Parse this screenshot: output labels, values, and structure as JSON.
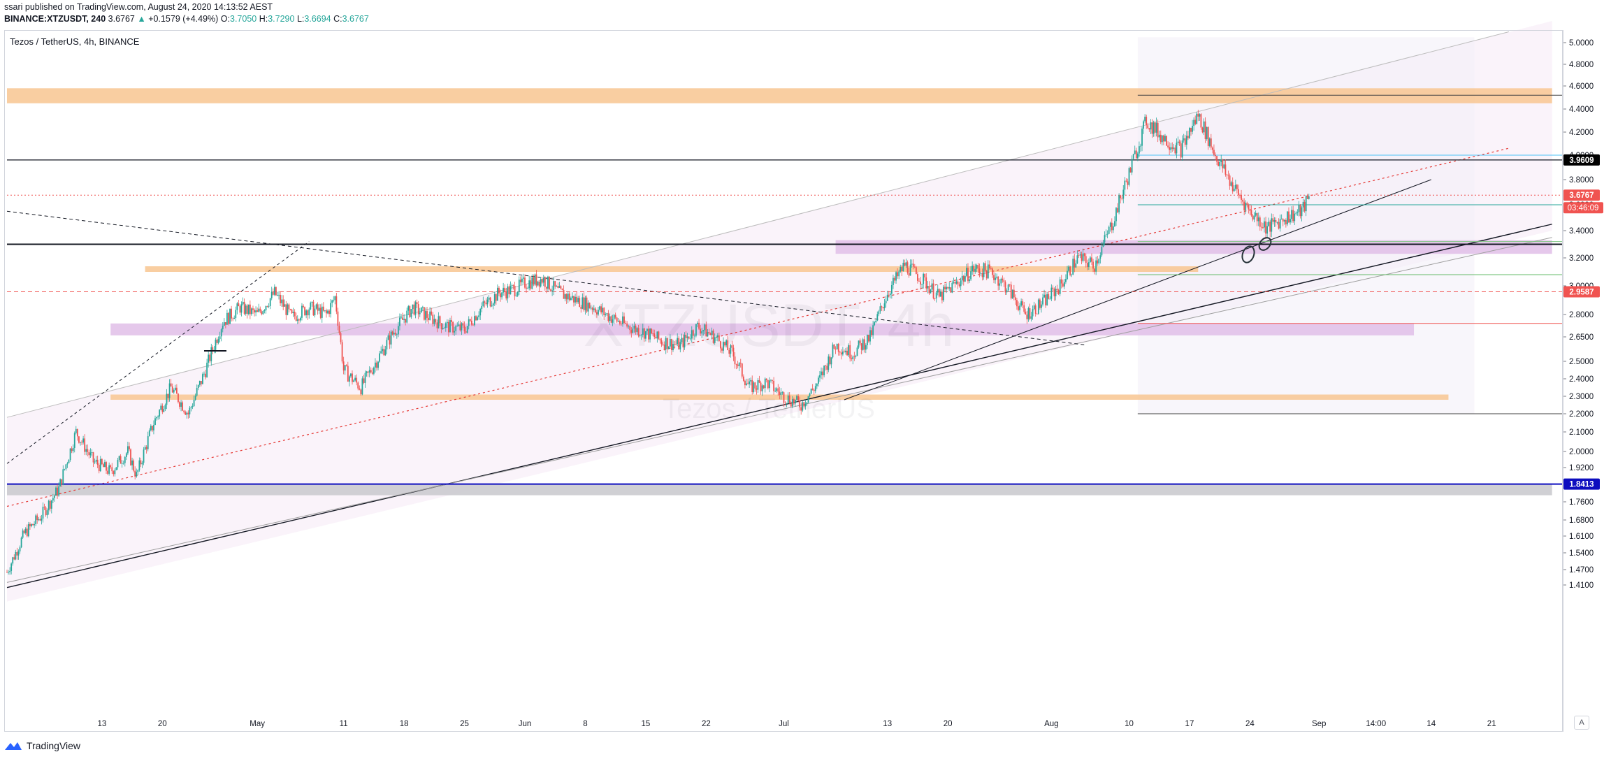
{
  "header": {
    "publisher": "ssari published on TradingView.com, August 24, 2020 14:13:52 AEST",
    "symbol_line": "BINANCE:XTZUSDT, 240",
    "last": "3.6767",
    "change_arrow": "▲",
    "change": "+0.1579 (+4.49%)",
    "open_label": "O:",
    "open": "3.7050",
    "high_label": "H:",
    "high": "3.7290",
    "low_label": "L:",
    "low": "3.6694",
    "close_label": "C:",
    "close": "3.6767"
  },
  "pane_title": "Tezos / TetherUS, 4h, BINANCE",
  "watermark": {
    "symbol": "XTZUSDT, 4h",
    "name": "Tezos / TetherUS"
  },
  "footer": {
    "brand": "TradingView"
  },
  "axis_button": "A",
  "colors": {
    "up": "#26a69a",
    "down": "#ef5350",
    "orange_zone": "#f8c591",
    "purple_zone": "#e1bee7",
    "grey_zone": "#c8c8cc",
    "blue_line": "#0d0dbf",
    "label_red": "#f05350",
    "label_black": "#000000",
    "label_blue": "#0d0dbf"
  },
  "chart_data": {
    "type": "candlestick",
    "title": "Tezos / TetherUS, 4h, BINANCE",
    "ylim": [
      1.35,
      5.05
    ],
    "price_ticks": [
      "5.0000",
      "4.8000",
      "4.6000",
      "4.4000",
      "4.2000",
      "4.0000",
      "3.8000",
      "3.6000",
      "3.4000",
      "3.2000",
      "3.0000",
      "2.8000",
      "2.6500",
      "2.5000",
      "2.4000",
      "2.3000",
      "2.2000",
      "2.1000",
      "2.0000",
      "1.9200",
      "1.8400",
      "1.7600",
      "1.6800",
      "1.6100",
      "1.5400",
      "1.4700",
      "1.4100"
    ],
    "time_ticks": [
      {
        "label": "13",
        "day": 13
      },
      {
        "label": "20",
        "day": 20
      },
      {
        "label": "May",
        "day": 31
      },
      {
        "label": "11",
        "day": 41
      },
      {
        "label": "18",
        "day": 48
      },
      {
        "label": "25",
        "day": 55
      },
      {
        "label": "Jun",
        "day": 62
      },
      {
        "label": "8",
        "day": 69
      },
      {
        "label": "15",
        "day": 76
      },
      {
        "label": "22",
        "day": 83
      },
      {
        "label": "Jul",
        "day": 92
      },
      {
        "label": "13",
        "day": 104
      },
      {
        "label": "20",
        "day": 111
      },
      {
        "label": "Aug",
        "day": 123
      },
      {
        "label": "10",
        "day": 132
      },
      {
        "label": "17",
        "day": 139
      },
      {
        "label": "24",
        "day": 146
      },
      {
        "label": "Sep",
        "day": 154
      },
      {
        "label": "14:00",
        "day": 160.6
      },
      {
        "label": "14",
        "day": 167
      },
      {
        "label": "21",
        "day": 174
      }
    ],
    "x_unit": "days since April 1, 2020",
    "xlim": [
      2,
      181
    ],
    "price_path": [
      [
        2,
        1.46
      ],
      [
        4,
        1.62
      ],
      [
        6,
        1.7
      ],
      [
        8,
        1.82
      ],
      [
        10,
        2.1
      ],
      [
        12,
        1.95
      ],
      [
        14,
        1.9
      ],
      [
        16,
        2.0
      ],
      [
        17,
        1.88
      ],
      [
        19,
        2.15
      ],
      [
        21,
        2.35
      ],
      [
        23,
        2.2
      ],
      [
        25,
        2.45
      ],
      [
        27,
        2.75
      ],
      [
        29,
        2.85
      ],
      [
        31,
        2.8
      ],
      [
        33,
        2.95
      ],
      [
        35,
        2.78
      ],
      [
        37,
        2.85
      ],
      [
        39,
        2.8
      ],
      [
        40,
        2.92
      ],
      [
        41,
        2.45
      ],
      [
        43,
        2.35
      ],
      [
        45,
        2.52
      ],
      [
        47,
        2.7
      ],
      [
        49,
        2.85
      ],
      [
        51,
        2.78
      ],
      [
        53,
        2.72
      ],
      [
        55,
        2.7
      ],
      [
        57,
        2.85
      ],
      [
        59,
        2.95
      ],
      [
        61,
        2.98
      ],
      [
        62,
        3.02
      ],
      [
        64,
        3.05
      ],
      [
        66,
        2.95
      ],
      [
        68,
        2.9
      ],
      [
        70,
        2.85
      ],
      [
        72,
        2.78
      ],
      [
        74,
        2.72
      ],
      [
        76,
        2.68
      ],
      [
        78,
        2.62
      ],
      [
        80,
        2.6
      ],
      [
        82,
        2.72
      ],
      [
        84,
        2.65
      ],
      [
        86,
        2.55
      ],
      [
        88,
        2.35
      ],
      [
        90,
        2.38
      ],
      [
        92,
        2.3
      ],
      [
        94,
        2.25
      ],
      [
        96,
        2.38
      ],
      [
        98,
        2.6
      ],
      [
        100,
        2.55
      ],
      [
        102,
        2.65
      ],
      [
        104,
        2.95
      ],
      [
        106,
        3.15
      ],
      [
        108,
        3.05
      ],
      [
        110,
        2.92
      ],
      [
        112,
        3.02
      ],
      [
        114,
        3.12
      ],
      [
        116,
        3.1
      ],
      [
        118,
        2.98
      ],
      [
        120,
        2.8
      ],
      [
        122,
        2.88
      ],
      [
        124,
        3.0
      ],
      [
        126,
        3.2
      ],
      [
        128,
        3.15
      ],
      [
        130,
        3.45
      ],
      [
        132,
        3.85
      ],
      [
        134,
        4.3
      ],
      [
        136,
        4.15
      ],
      [
        138,
        4.05
      ],
      [
        140,
        4.35
      ],
      [
        142,
        4.0
      ],
      [
        144,
        3.75
      ],
      [
        146,
        3.55
      ],
      [
        148,
        3.42
      ],
      [
        150,
        3.5
      ],
      [
        152,
        3.55
      ],
      [
        153,
        3.68
      ]
    ],
    "horizontal_levels": [
      {
        "price": 3.9609,
        "label": "3.9609",
        "style": "solid-black"
      },
      {
        "price": 3.6767,
        "label": "3.6767",
        "style": "dotted-red",
        "countdown": "03:46:09"
      },
      {
        "price": 2.9587,
        "label": "2.9587",
        "style": "dashed-red"
      },
      {
        "price": 1.8413,
        "label": "1.8413",
        "style": "solid-blue"
      },
      {
        "price": 3.3,
        "style": "solid-black-thick"
      }
    ],
    "zones": [
      {
        "color": "orange",
        "from_day": 2,
        "to_day": 181,
        "low": 4.45,
        "high": 4.58
      },
      {
        "color": "orange",
        "from_day": 18,
        "to_day": 140,
        "low": 3.1,
        "high": 3.14
      },
      {
        "color": "orange",
        "from_day": 14,
        "to_day": 169,
        "low": 2.28,
        "high": 2.31
      },
      {
        "color": "purple",
        "from_day": 98,
        "to_day": 181,
        "low": 3.23,
        "high": 3.33
      },
      {
        "color": "purple",
        "from_day": 14,
        "to_day": 165,
        "low": 2.66,
        "high": 2.74
      },
      {
        "color": "grey",
        "from_day": 2,
        "to_day": 181,
        "low": 1.79,
        "high": 1.84
      }
    ]
  }
}
